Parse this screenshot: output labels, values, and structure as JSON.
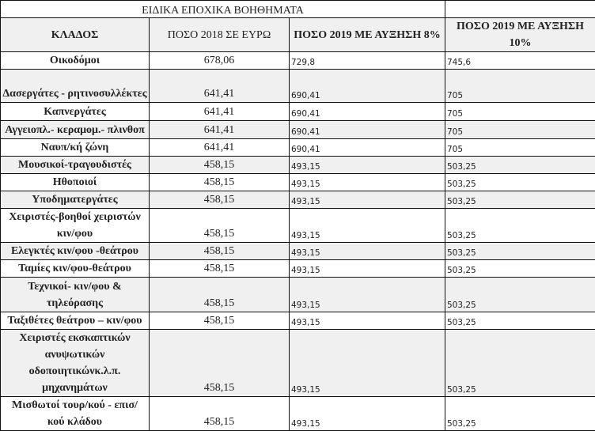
{
  "title": "ΕΙΔΙΚΑ ΕΠΟΧΙΚΑ ΒΟΗΘΗΜΑΤΑ",
  "headers": [
    "ΚΛΑΔΟΣ",
    "ΠΟΣΟ 2018 ΣΕ ΕΥΡΩ",
    "ΠΟΣΟ 2019 ΜΕ ΑΥΞΗΣΗ 8%",
    "ΠΟΣΟ 2019 ΜΕ ΑΥΞΗΣΗ 10%"
  ],
  "rows": [
    {
      "name": "Οικοδόμοι",
      "v2018": "678,06",
      "v2019_8": "729,8",
      "v2019_10": "745,6"
    },
    {
      "name": "Δασεργάτες - ρητινοσυλλέκτες",
      "v2018": "641,41",
      "v2019_8": "690,41",
      "v2019_10": "705"
    },
    {
      "name": "Καπνεργάτες",
      "v2018": "641,41",
      "v2019_8": "690,41",
      "v2019_10": "705"
    },
    {
      "name": "Αγγειοπλ.- κεραμομ.- πλινθοπ",
      "v2018": "641,41",
      "v2019_8": "690,41",
      "v2019_10": "705"
    },
    {
      "name": "Ναυπ/κή ζώνη",
      "v2018": "641,41",
      "v2019_8": "690,41",
      "v2019_10": "705"
    },
    {
      "name": "Μουσικοί-τραγουδιστές",
      "v2018": "458,15",
      "v2019_8": "493,15",
      "v2019_10": "503,25"
    },
    {
      "name": "Ηθοποιοί",
      "v2018": "458,15",
      "v2019_8": "493,15",
      "v2019_10": "503,25"
    },
    {
      "name": "Υποδηματεργάτες",
      "v2018": "458,15",
      "v2019_8": "493,15",
      "v2019_10": "503,25"
    },
    {
      "name": "Χειριστές-βοηθοί χειριστών κιν/φου",
      "v2018": "458,15",
      "v2019_8": "493,15",
      "v2019_10": "503,25"
    },
    {
      "name": "Ελεγκτές κιν/φου -θεάτρου",
      "v2018": "458,15",
      "v2019_8": "493,15",
      "v2019_10": "503,25"
    },
    {
      "name": "Ταμίες κιν/φου-θεάτρου",
      "v2018": "458,15",
      "v2019_8": "493,15",
      "v2019_10": "503,25"
    },
    {
      "name": "Τεχνικοί- κιν/φου & τηλεόρασης",
      "v2018": "458,15",
      "v2019_8": "493,15",
      "v2019_10": "503,25"
    },
    {
      "name": "Ταξιθέτες θεάτρου – κιν/φου",
      "v2018": "458,15",
      "v2019_8": "493,15",
      "v2019_10": "503,25"
    },
    {
      "name": "Χειριστές εκσκαπτικών ανυψωτικών οδοποιητικώνκ.λ.π. μηχανημάτων",
      "v2018": "458,15",
      "v2019_8": "493,15",
      "v2019_10": "503,25"
    },
    {
      "name": "Μισθωτοί τουρ/κού - επισ/ κού κλάδου",
      "v2018": "458,15",
      "v2019_8": "493,15",
      "v2019_10": "503,25"
    }
  ]
}
